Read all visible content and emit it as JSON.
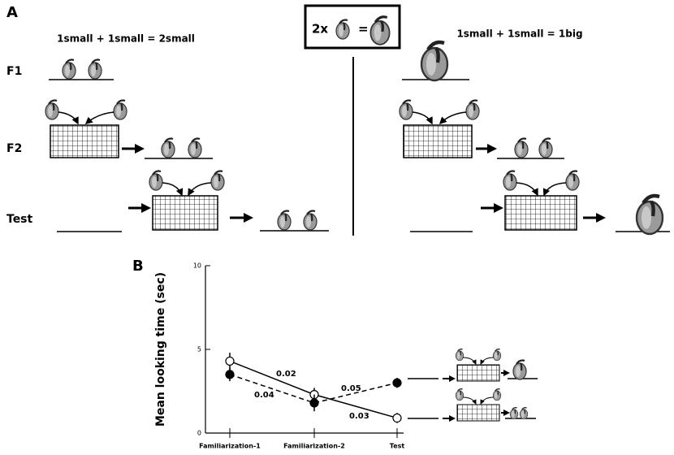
{
  "panel_a": {
    "label": "A",
    "left_heading": "1small + 1small = 2small",
    "right_heading": "1small + 1small = 1big",
    "box_left": "2x",
    "box_eq": "=",
    "rows": [
      "F1",
      "F2",
      "Test"
    ]
  },
  "chart_data": {
    "type": "line",
    "panel_label": "B",
    "ylabel": "Mean looking time (sec)",
    "categories": [
      "Familiarization-1",
      "Familiarization-2",
      "Test"
    ],
    "ylim": [
      0,
      10
    ],
    "yticks": [
      0,
      5,
      10
    ],
    "series": [
      {
        "color": "#000000",
        "marker": "open",
        "dashed": false,
        "values": [
          4.3,
          2.3,
          0.9
        ],
        "errors": [
          0.5,
          0.4,
          0.3
        ]
      },
      {
        "color": "#000000",
        "marker": "filled",
        "dashed": true,
        "values": [
          3.5,
          1.8,
          3.0
        ],
        "errors": [
          0.4,
          0.5,
          0.3
        ]
      }
    ],
    "annotations": [
      "0.02",
      "0.04",
      "0.05",
      "0.03"
    ]
  }
}
